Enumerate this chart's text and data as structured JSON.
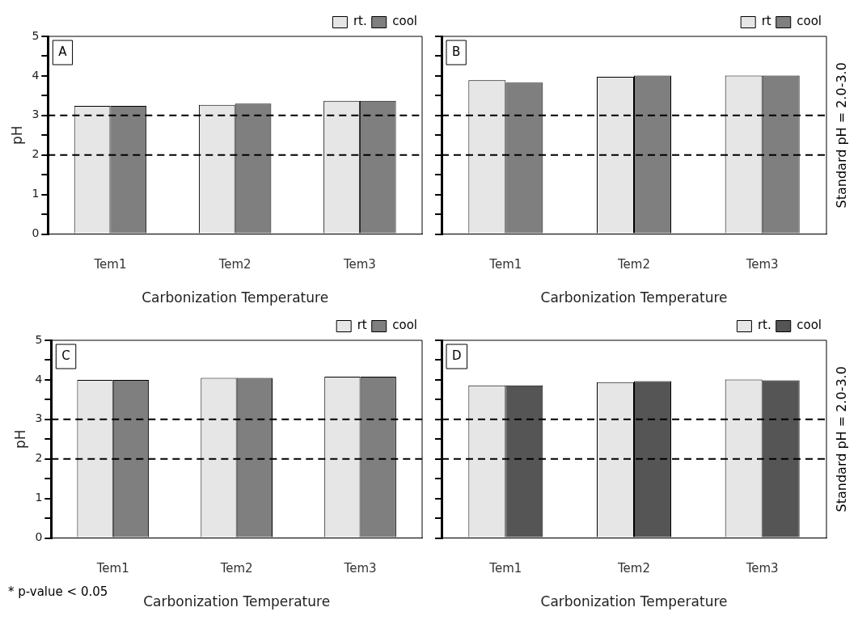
{
  "chart_data": [
    {
      "type": "bar",
      "title": "A",
      "categories": [
        "Tem1",
        "Tem2",
        "Tem3"
      ],
      "xlabel": "Carbonization Temperature",
      "ylabel": "pH",
      "ylim": [
        0,
        5
      ],
      "yticks": [
        0,
        {
          "value": 0.5,
          "label": null
        },
        1,
        {
          "value": 1.5,
          "label": null
        },
        2,
        {
          "value": 2.5,
          "label": null
        },
        3,
        {
          "value": 3.5,
          "label": null
        },
        4,
        {
          "value": 4.5,
          "label": null
        },
        5
      ],
      "legend": "top right",
      "grid": false,
      "series": [
        {
          "name": "rt.",
          "color": "#e6e6e6",
          "values": [
            3.24,
            3.27,
            3.37
          ]
        },
        {
          "name": "cool",
          "color": "#7f7f7f",
          "values": [
            3.24,
            3.3,
            3.37
          ]
        }
      ],
      "ref_lines": [
        {
          "axis": "y",
          "value": 2,
          "line_style": "dashed",
          "color": "#000000"
        },
        {
          "axis": "y",
          "value": 3,
          "line_style": "dashed",
          "color": "#000000"
        }
      ]
    },
    {
      "type": "bar",
      "title": "B",
      "categories": [
        "Tem1",
        "Tem2",
        "Tem3"
      ],
      "xlabel": "Carbonization Temperature",
      "y2label": "Standard pH = 2.0-3.0",
      "ylim": [
        0,
        5
      ],
      "yticks": [
        0,
        {
          "value": 0.5,
          "label": null
        },
        1,
        {
          "value": 1.5,
          "label": null
        },
        2,
        {
          "value": 2.5,
          "label": null
        },
        3,
        {
          "value": 3.5,
          "label": null
        },
        4,
        {
          "value": 4.5,
          "label": null
        },
        5
      ],
      "tick_labels": "x",
      "legend": "top right",
      "grid": false,
      "series": [
        {
          "name": "rt",
          "color": "#e6e6e6",
          "values": [
            3.89,
            3.98,
            4.01
          ]
        },
        {
          "name": "cool",
          "color": "#7f7f7f",
          "values": [
            3.83,
            4.01,
            4.01
          ]
        }
      ],
      "ref_lines": [
        {
          "axis": "y",
          "value": 2,
          "line_style": "dashed",
          "color": "#000000"
        },
        {
          "axis": "y",
          "value": 3,
          "line_style": "dashed",
          "color": "#000000"
        }
      ]
    },
    {
      "type": "bar",
      "title": "C",
      "categories": [
        "Tem1",
        "Tem2",
        "Tem3"
      ],
      "xlabel": "Carbonization Temperature",
      "ylabel": "pH",
      "ylim": [
        0,
        5
      ],
      "yticks": [
        0,
        {
          "value": 0.5,
          "label": null
        },
        1,
        {
          "value": 1.5,
          "label": null
        },
        2,
        {
          "value": 2.5,
          "label": null
        },
        3,
        {
          "value": 3.5,
          "label": null
        },
        4,
        {
          "value": 4.5,
          "label": null
        },
        5
      ],
      "legend": "top right",
      "grid": false,
      "series": [
        {
          "name": "rt",
          "color": "#e6e6e6",
          "values": [
            4.0,
            4.05,
            4.08
          ]
        },
        {
          "name": "cool",
          "color": "#7f7f7f",
          "values": [
            4.0,
            4.05,
            4.08
          ]
        }
      ],
      "ref_lines": [
        {
          "axis": "y",
          "value": 2,
          "line_style": "dashed",
          "color": "#000000"
        },
        {
          "axis": "y",
          "value": 3,
          "line_style": "dashed",
          "color": "#000000"
        }
      ],
      "annotations": [
        "* p-value < 0.05"
      ]
    },
    {
      "type": "bar",
      "title": "D",
      "categories": [
        "Tem1",
        "Tem2",
        "Tem3"
      ],
      "xlabel": "Carbonization Temperature",
      "y2label": "Standard pH = 2.0-3.0",
      "ylim": [
        0,
        5
      ],
      "yticks": [
        0,
        {
          "value": 0.5,
          "label": null
        },
        1,
        {
          "value": 1.5,
          "label": null
        },
        2,
        {
          "value": 2.5,
          "label": null
        },
        3,
        {
          "value": 3.5,
          "label": null
        },
        4,
        {
          "value": 4.5,
          "label": null
        },
        5
      ],
      "tick_labels": "x",
      "legend": "top right",
      "grid": false,
      "series": [
        {
          "name": "rt.",
          "color": "#e6e6e6",
          "values": [
            3.86,
            3.94,
            4.01
          ]
        },
        {
          "name": "cool",
          "color": "#555555",
          "values": [
            3.86,
            3.97,
            3.99
          ]
        }
      ],
      "ref_lines": [
        {
          "axis": "y",
          "value": 2,
          "line_style": "dashed",
          "color": "#000000"
        },
        {
          "axis": "y",
          "value": 3,
          "line_style": "dashed",
          "color": "#000000"
        }
      ]
    }
  ]
}
